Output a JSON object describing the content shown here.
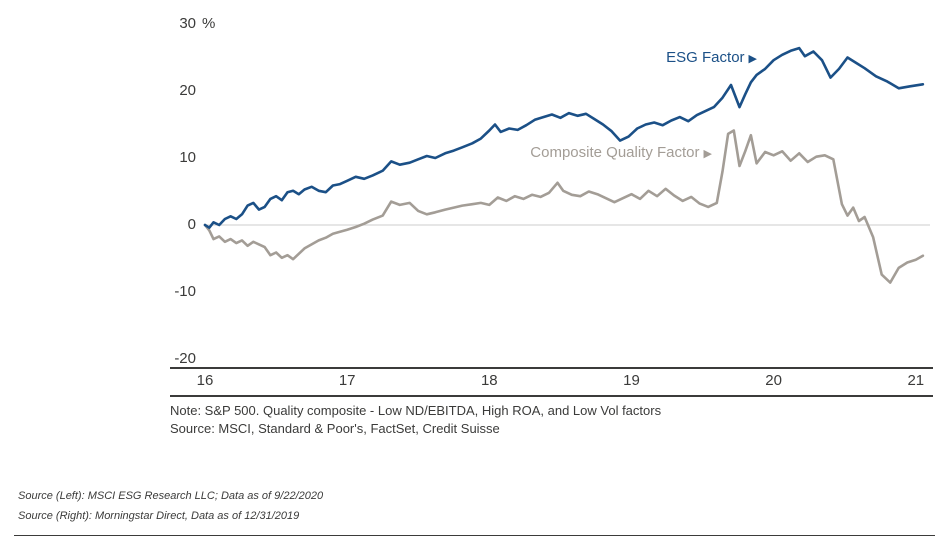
{
  "chart_data": {
    "type": "line",
    "title": "",
    "y_unit": "%",
    "xlim": [
      16,
      21.1
    ],
    "ylim": [
      -20,
      30
    ],
    "x_ticks": [
      16,
      17,
      18,
      19,
      20,
      21
    ],
    "y_ticks": [
      30,
      20,
      10,
      0,
      -10,
      -20
    ],
    "grid": "zero-line-only",
    "legend_position": "inline-labels-on-plot",
    "colors": {
      "zero_line": "#d8d8d8",
      "axis_line": "#3b3b3a"
    },
    "series": [
      {
        "name": "ESG Factor",
        "pointer": "▶",
        "color": "#1b5087",
        "points": [
          [
            16,
            0
          ],
          [
            16.03,
            -0.4
          ],
          [
            16.06,
            0.4
          ],
          [
            16.1,
            0
          ],
          [
            16.14,
            0.9
          ],
          [
            16.18,
            1.3
          ],
          [
            16.22,
            0.9
          ],
          [
            16.26,
            1.6
          ],
          [
            16.3,
            2.9
          ],
          [
            16.34,
            3.3
          ],
          [
            16.38,
            2.3
          ],
          [
            16.42,
            2.7
          ],
          [
            16.46,
            3.9
          ],
          [
            16.5,
            4.3
          ],
          [
            16.54,
            3.7
          ],
          [
            16.58,
            4.9
          ],
          [
            16.62,
            5.1
          ],
          [
            16.66,
            4.6
          ],
          [
            16.7,
            5.3
          ],
          [
            16.75,
            5.7
          ],
          [
            16.8,
            5.1
          ],
          [
            16.85,
            4.9
          ],
          [
            16.9,
            5.9
          ],
          [
            16.95,
            6.1
          ],
          [
            17,
            6.6
          ],
          [
            17.06,
            7.2
          ],
          [
            17.12,
            6.9
          ],
          [
            17.18,
            7.4
          ],
          [
            17.25,
            8.1
          ],
          [
            17.31,
            9.5
          ],
          [
            17.37,
            9
          ],
          [
            17.44,
            9.3
          ],
          [
            17.5,
            9.8
          ],
          [
            17.56,
            10.3
          ],
          [
            17.62,
            10
          ],
          [
            17.69,
            10.7
          ],
          [
            17.75,
            11.1
          ],
          [
            17.81,
            11.6
          ],
          [
            17.88,
            12.2
          ],
          [
            17.94,
            12.9
          ],
          [
            18,
            14.1
          ],
          [
            18.04,
            15
          ],
          [
            18.08,
            13.9
          ],
          [
            18.14,
            14.4
          ],
          [
            18.2,
            14.2
          ],
          [
            18.26,
            14.9
          ],
          [
            18.32,
            15.7
          ],
          [
            18.38,
            16.1
          ],
          [
            18.44,
            16.5
          ],
          [
            18.5,
            16
          ],
          [
            18.56,
            16.7
          ],
          [
            18.62,
            16.3
          ],
          [
            18.68,
            16.6
          ],
          [
            18.74,
            15.8
          ],
          [
            18.8,
            15
          ],
          [
            18.86,
            14
          ],
          [
            18.92,
            12.6
          ],
          [
            18.98,
            13.2
          ],
          [
            19.04,
            14.4
          ],
          [
            19.1,
            15
          ],
          [
            19.16,
            15.3
          ],
          [
            19.22,
            14.9
          ],
          [
            19.28,
            15.6
          ],
          [
            19.34,
            16.1
          ],
          [
            19.4,
            15.5
          ],
          [
            19.46,
            16.4
          ],
          [
            19.52,
            17
          ],
          [
            19.58,
            17.6
          ],
          [
            19.64,
            19
          ],
          [
            19.7,
            20.9
          ],
          [
            19.76,
            17.6
          ],
          [
            19.8,
            19.5
          ],
          [
            19.84,
            21.3
          ],
          [
            19.88,
            22.4
          ],
          [
            19.94,
            23.3
          ],
          [
            20,
            24.6
          ],
          [
            20.06,
            25.4
          ],
          [
            20.12,
            26
          ],
          [
            20.18,
            26.4
          ],
          [
            20.22,
            25.2
          ],
          [
            20.28,
            25.9
          ],
          [
            20.34,
            24.6
          ],
          [
            20.4,
            22
          ],
          [
            20.46,
            23.3
          ],
          [
            20.52,
            25
          ],
          [
            20.58,
            24.2
          ],
          [
            20.64,
            23.4
          ],
          [
            20.72,
            22.2
          ],
          [
            20.8,
            21.4
          ],
          [
            20.88,
            20.4
          ],
          [
            20.96,
            20.7
          ],
          [
            21.05,
            21
          ]
        ]
      },
      {
        "name": "Composite Quality Factor",
        "pointer": "▶",
        "color": "#a39d96",
        "points": [
          [
            16,
            0
          ],
          [
            16.03,
            -0.8
          ],
          [
            16.06,
            -2.1
          ],
          [
            16.1,
            -1.7
          ],
          [
            16.14,
            -2.5
          ],
          [
            16.18,
            -2.1
          ],
          [
            16.22,
            -2.7
          ],
          [
            16.26,
            -2.3
          ],
          [
            16.3,
            -3.1
          ],
          [
            16.34,
            -2.5
          ],
          [
            16.38,
            -2.9
          ],
          [
            16.42,
            -3.3
          ],
          [
            16.46,
            -4.5
          ],
          [
            16.5,
            -4.1
          ],
          [
            16.54,
            -4.9
          ],
          [
            16.58,
            -4.5
          ],
          [
            16.62,
            -5.1
          ],
          [
            16.66,
            -4.3
          ],
          [
            16.7,
            -3.5
          ],
          [
            16.75,
            -2.9
          ],
          [
            16.8,
            -2.3
          ],
          [
            16.85,
            -1.9
          ],
          [
            16.9,
            -1.3
          ],
          [
            16.95,
            -1
          ],
          [
            17,
            -0.7
          ],
          [
            17.06,
            -0.3
          ],
          [
            17.12,
            0.2
          ],
          [
            17.18,
            0.8
          ],
          [
            17.25,
            1.4
          ],
          [
            17.31,
            3.5
          ],
          [
            17.37,
            3
          ],
          [
            17.44,
            3.3
          ],
          [
            17.5,
            2.1
          ],
          [
            17.56,
            1.6
          ],
          [
            17.62,
            1.9
          ],
          [
            17.69,
            2.3
          ],
          [
            17.75,
            2.6
          ],
          [
            17.81,
            2.9
          ],
          [
            17.88,
            3.1
          ],
          [
            17.94,
            3.3
          ],
          [
            18,
            3
          ],
          [
            18.06,
            4.1
          ],
          [
            18.12,
            3.6
          ],
          [
            18.18,
            4.3
          ],
          [
            18.24,
            3.9
          ],
          [
            18.3,
            4.5
          ],
          [
            18.36,
            4.2
          ],
          [
            18.42,
            4.8
          ],
          [
            18.48,
            6.3
          ],
          [
            18.52,
            5.1
          ],
          [
            18.58,
            4.5
          ],
          [
            18.64,
            4.3
          ],
          [
            18.7,
            5
          ],
          [
            18.76,
            4.6
          ],
          [
            18.82,
            4
          ],
          [
            18.88,
            3.4
          ],
          [
            18.94,
            4
          ],
          [
            19,
            4.6
          ],
          [
            19.06,
            3.9
          ],
          [
            19.12,
            5.1
          ],
          [
            19.18,
            4.3
          ],
          [
            19.24,
            5.4
          ],
          [
            19.3,
            4.4
          ],
          [
            19.36,
            3.6
          ],
          [
            19.42,
            4.2
          ],
          [
            19.48,
            3.2
          ],
          [
            19.54,
            2.7
          ],
          [
            19.6,
            3.3
          ],
          [
            19.64,
            8
          ],
          [
            19.68,
            13.6
          ],
          [
            19.72,
            14.1
          ],
          [
            19.76,
            8.8
          ],
          [
            19.8,
            11
          ],
          [
            19.84,
            13.4
          ],
          [
            19.88,
            9.2
          ],
          [
            19.94,
            10.9
          ],
          [
            20,
            10.4
          ],
          [
            20.06,
            11
          ],
          [
            20.12,
            9.6
          ],
          [
            20.18,
            10.7
          ],
          [
            20.24,
            9.4
          ],
          [
            20.3,
            10.2
          ],
          [
            20.36,
            10.4
          ],
          [
            20.42,
            9.8
          ],
          [
            20.48,
            3.1
          ],
          [
            20.52,
            1.4
          ],
          [
            20.56,
            2.6
          ],
          [
            20.6,
            0.6
          ],
          [
            20.64,
            1.2
          ],
          [
            20.7,
            -1.8
          ],
          [
            20.76,
            -7.4
          ],
          [
            20.82,
            -8.6
          ],
          [
            20.88,
            -6.4
          ],
          [
            20.94,
            -5.6
          ],
          [
            21,
            -5.2
          ],
          [
            21.05,
            -4.6
          ]
        ]
      }
    ]
  },
  "notes": {
    "note": "Note: S&P 500. Quality composite - Low ND/EBITDA, High ROA, and Low Vol factors",
    "source": "Source: MSCI, Standard & Poor's, FactSet, Credit Suisse"
  },
  "footers": {
    "left": "Source (Left): MSCI ESG Research LLC; Data as of 9/22/2020",
    "right": "Source (Right): Morningstar Direct, Data as of 12/31/2019"
  }
}
